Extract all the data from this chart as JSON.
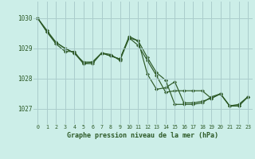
{
  "bg_color": "#cceee8",
  "grid_color": "#aacccc",
  "line_color": "#2d5a27",
  "marker_color": "#2d5a27",
  "xlabel": "Graphe pression niveau de la mer (hPa)",
  "xlim": [
    -0.5,
    23.5
  ],
  "ylim": [
    1026.5,
    1030.55
  ],
  "yticks": [
    1027,
    1028,
    1029,
    1030
  ],
  "xticks": [
    0,
    1,
    2,
    3,
    4,
    5,
    6,
    7,
    8,
    9,
    10,
    11,
    12,
    13,
    14,
    15,
    16,
    17,
    18,
    19,
    20,
    21,
    22,
    23
  ],
  "series": [
    {
      "x": [
        0,
        1,
        2,
        3,
        4,
        5,
        6,
        7,
        8,
        9,
        10,
        11,
        12,
        13,
        14,
        15,
        16,
        17,
        18,
        19,
        20,
        21,
        22,
        23
      ],
      "y": [
        1030.0,
        1029.55,
        1029.2,
        1029.0,
        1028.85,
        1028.55,
        1028.55,
        1028.85,
        1028.8,
        1028.6,
        1029.35,
        1029.1,
        1028.6,
        1028.1,
        1027.55,
        1027.6,
        1027.6,
        1027.6,
        1027.6,
        1027.35,
        1027.5,
        1027.1,
        1027.1,
        1027.4
      ]
    },
    {
      "x": [
        0,
        1,
        2,
        3,
        4,
        5,
        6,
        7,
        8,
        9,
        10,
        11,
        12,
        13,
        14,
        15,
        16,
        17,
        18,
        19,
        20,
        21,
        22,
        23
      ],
      "y": [
        1030.0,
        1029.55,
        1029.15,
        1028.9,
        1028.9,
        1028.5,
        1028.5,
        1028.85,
        1028.75,
        1028.65,
        1029.4,
        1029.25,
        1028.15,
        1027.65,
        1027.7,
        1027.9,
        1027.2,
        1027.2,
        1027.25,
        1027.35,
        1027.5,
        1027.1,
        1027.1,
        1027.4
      ]
    },
    {
      "x": [
        0,
        1,
        2,
        3,
        4,
        5,
        6,
        7,
        8,
        9,
        10,
        11,
        12,
        13,
        14,
        15,
        16,
        17,
        18,
        19,
        20,
        21,
        22,
        23
      ],
      "y": [
        1030.0,
        1029.6,
        1029.2,
        1029.0,
        1028.85,
        1028.5,
        1028.55,
        1028.85,
        1028.75,
        1028.65,
        1029.35,
        1029.25,
        1028.7,
        1028.2,
        1027.95,
        1027.15,
        1027.15,
        1027.15,
        1027.2,
        1027.4,
        1027.5,
        1027.1,
        1027.15,
        1027.4
      ]
    }
  ]
}
